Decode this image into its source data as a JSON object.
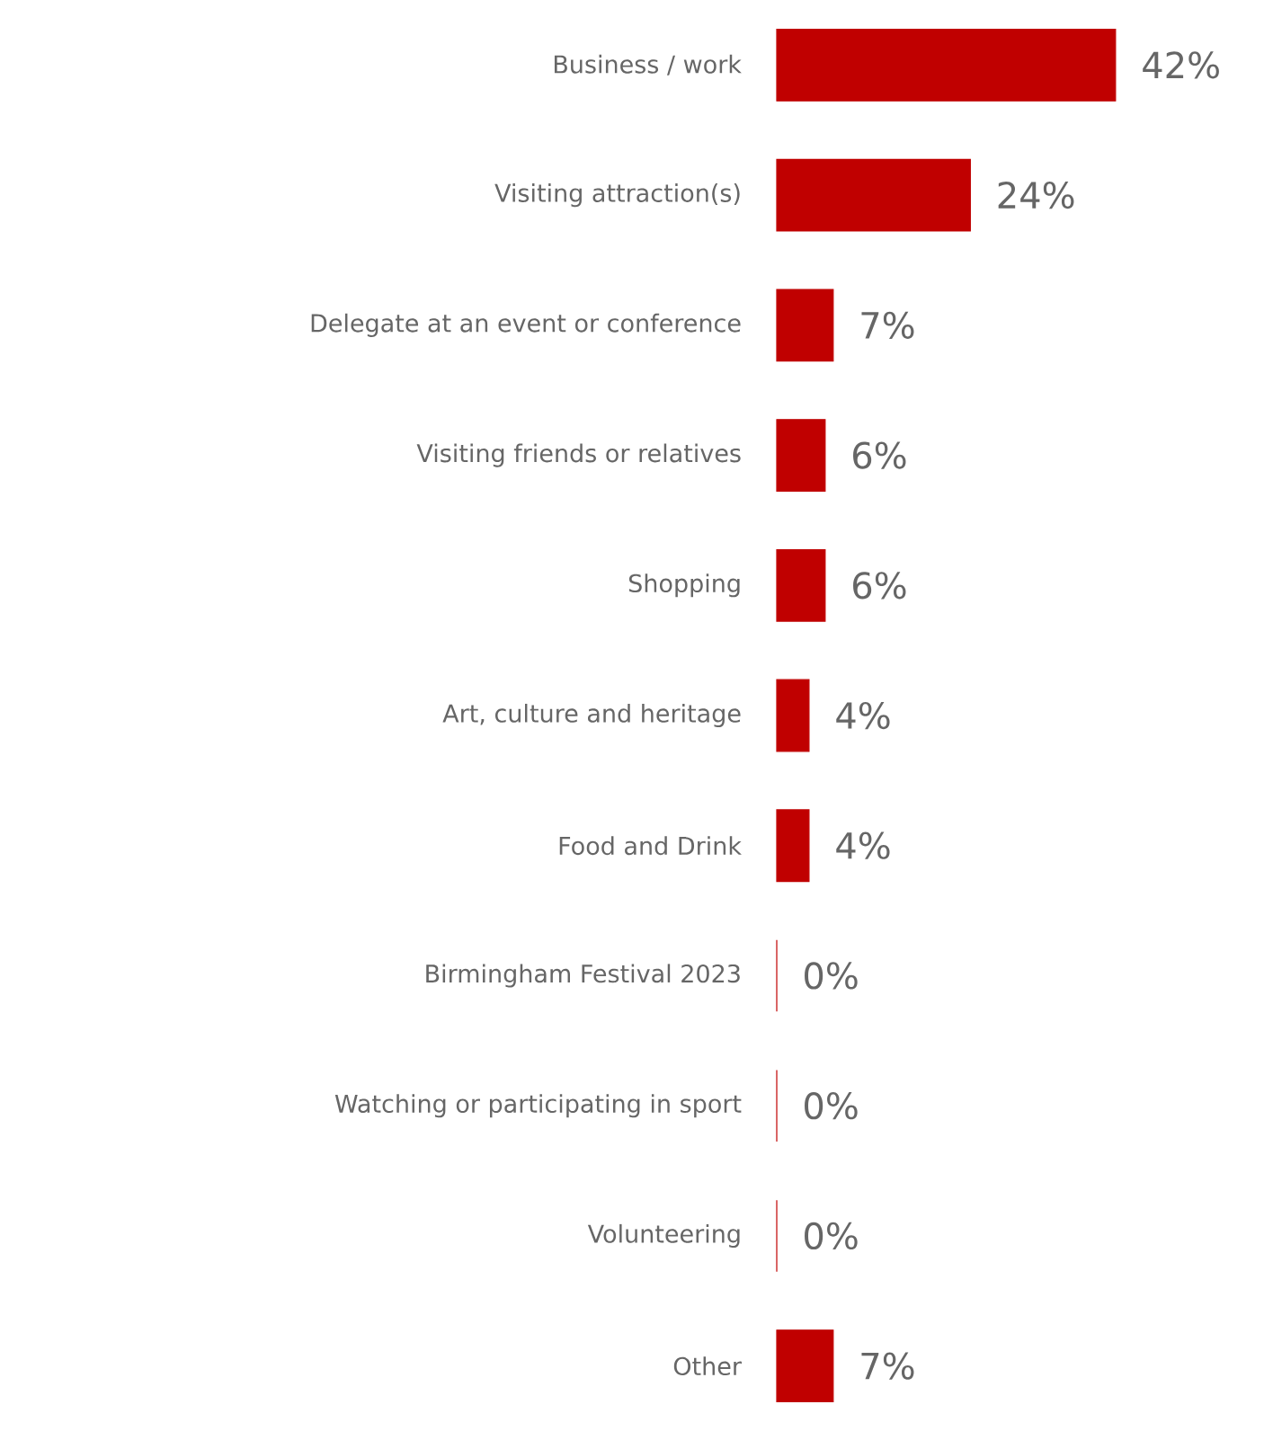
{
  "chart_data": {
    "type": "bar",
    "orientation": "horizontal",
    "color": "#c00000",
    "categories": [
      "Business / work",
      "Visiting attraction(s)",
      "Delegate at an event or conference",
      "Visiting friends or relatives",
      "Shopping",
      "Art, culture and heritage",
      "Food and Drink",
      "Birmingham Festival 2023",
      "Watching or participating in sport",
      "Volunteering",
      "Other"
    ],
    "values": [
      42,
      24,
      7,
      6,
      6,
      4,
      4,
      0,
      0,
      0,
      7
    ],
    "value_labels": [
      "42%",
      "24%",
      "7%",
      "6%",
      "6%",
      "4%",
      "4%",
      "0%",
      "0%",
      "0%",
      "7%"
    ]
  }
}
